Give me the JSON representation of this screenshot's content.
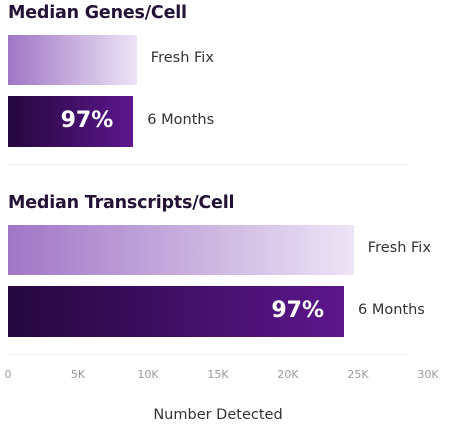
{
  "chart_data": {
    "type": "bar",
    "orientation": "horizontal",
    "panels": [
      {
        "title": "Median Genes/Cell",
        "categories": [
          "Fresh Fix",
          "6 Months"
        ],
        "values": [
          9200,
          8950
        ],
        "data_labels": [
          "",
          "97%"
        ]
      },
      {
        "title": "Median Transcripts/Cell",
        "categories": [
          "Fresh Fix",
          "6 Months"
        ],
        "values": [
          24700,
          24000
        ],
        "data_labels": [
          "",
          "97%"
        ]
      }
    ],
    "xlabel": "Number Detected",
    "xlim": [
      0,
      30000
    ],
    "xticks": [
      0,
      5000,
      10000,
      15000,
      20000,
      25000,
      30000
    ],
    "xtick_labels": [
      "0",
      "5K",
      "10K",
      "15K",
      "20K",
      "25K",
      "30K"
    ],
    "grid": false,
    "legend": "none",
    "colors": {
      "fresh_fix_gradient": [
        "#a076c6",
        "#ede4f5"
      ],
      "six_months_gradient": [
        "#24083e",
        "#5c168c"
      ],
      "title_text": "#241235",
      "label_text": "#333333",
      "tick_text": "#9a9a9a"
    }
  }
}
